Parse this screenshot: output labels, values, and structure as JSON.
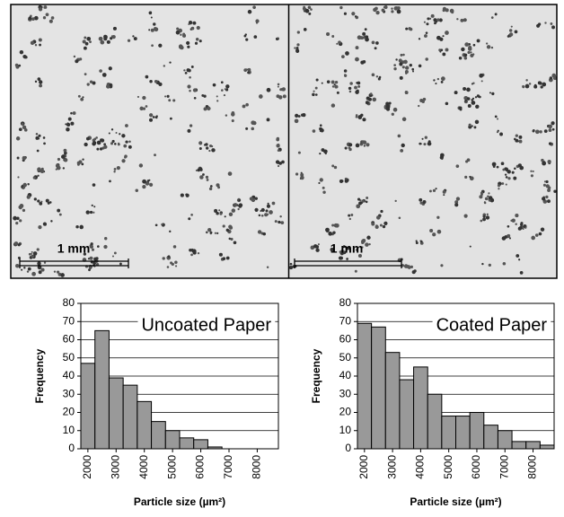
{
  "micrographs": [
    {
      "scale_label": "1 mm"
    },
    {
      "scale_label": "1 mm"
    }
  ],
  "chart_data": [
    {
      "type": "histogram",
      "annotation": "Uncoated Paper",
      "y_label": "Frequency",
      "x_label": "Particle size (µm²)",
      "bins": [
        1750,
        2250,
        2750,
        3250,
        3750,
        4250,
        4750,
        5250,
        5750,
        6250,
        6750,
        7250,
        7750,
        8250,
        8750
      ],
      "values": [
        47,
        65,
        39,
        35,
        26,
        15,
        10,
        6,
        5,
        1,
        0,
        0,
        0,
        0
      ],
      "color": "#999999",
      "xlim": [
        1750,
        8750
      ],
      "xticks": [
        2000,
        3000,
        4000,
        5000,
        6000,
        7000,
        8000
      ],
      "ylim": [
        0,
        80
      ],
      "yticks": [
        0,
        10,
        20,
        30,
        40,
        50,
        60,
        70,
        80
      ],
      "grid": true
    },
    {
      "type": "histogram",
      "annotation": "Coated Paper",
      "y_label": "Frequency",
      "x_label": "Particle size (µm²)",
      "bins": [
        1750,
        2250,
        2750,
        3250,
        3750,
        4250,
        4750,
        5250,
        5750,
        6250,
        6750,
        7250,
        7750,
        8250,
        8750
      ],
      "values": [
        69,
        67,
        53,
        38,
        45,
        30,
        18,
        18,
        20,
        13,
        10,
        4,
        4,
        2
      ],
      "color": "#999999",
      "xlim": [
        1750,
        8750
      ],
      "xticks": [
        2000,
        3000,
        4000,
        5000,
        6000,
        7000,
        8000
      ],
      "ylim": [
        0,
        80
      ],
      "yticks": [
        0,
        10,
        20,
        30,
        40,
        50,
        60,
        70,
        80
      ],
      "grid": true
    }
  ]
}
